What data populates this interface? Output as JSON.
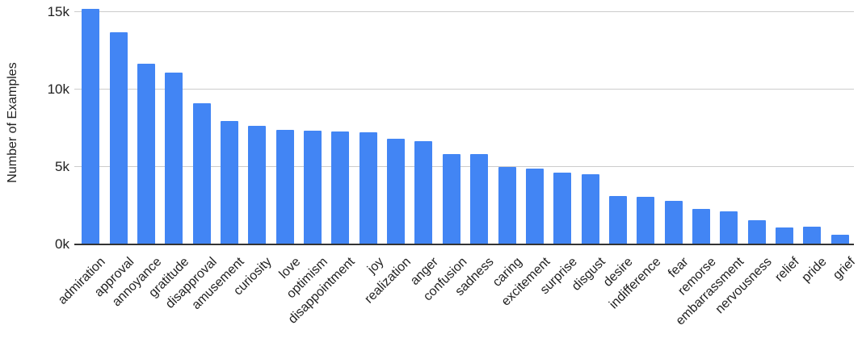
{
  "chart_data": {
    "type": "bar",
    "title": "",
    "xlabel": "",
    "ylabel": "Number of Examples",
    "legend": "none",
    "grid": "horizontal",
    "bar_color": "#4285F4",
    "gridline_color": "#cccccc",
    "axis_line_color": "#333333",
    "text_color": "#212121",
    "ylim": [
      0,
      15500
    ],
    "y_axis": {
      "title": "Number of Examples",
      "ticks": [
        {
          "label": "0k",
          "value": 0
        },
        {
          "label": "5k",
          "value": 5000
        },
        {
          "label": "10k",
          "value": 10000
        },
        {
          "label": "15k",
          "value": 15000
        }
      ]
    },
    "categories": [
      "admiration",
      "approval",
      "annoyance",
      "gratitude",
      "disapproval",
      "amusement",
      "curiosity",
      "love",
      "optimism",
      "disappointment",
      "joy",
      "realization",
      "anger",
      "confusion",
      "sadness",
      "caring",
      "excitement",
      "surprise",
      "disgust",
      "desire",
      "indifference",
      "fear",
      "remorse",
      "embarrassment",
      "nervousness",
      "relief",
      "pride",
      "grief"
    ],
    "values": [
      15200,
      13700,
      11650,
      11100,
      9100,
      7950,
      7650,
      7400,
      7350,
      7300,
      7250,
      6800,
      6650,
      5850,
      5850,
      5000,
      4900,
      4650,
      4550,
      3150,
      3050,
      2800,
      2300,
      2150,
      1550,
      1100,
      1150,
      600
    ]
  }
}
